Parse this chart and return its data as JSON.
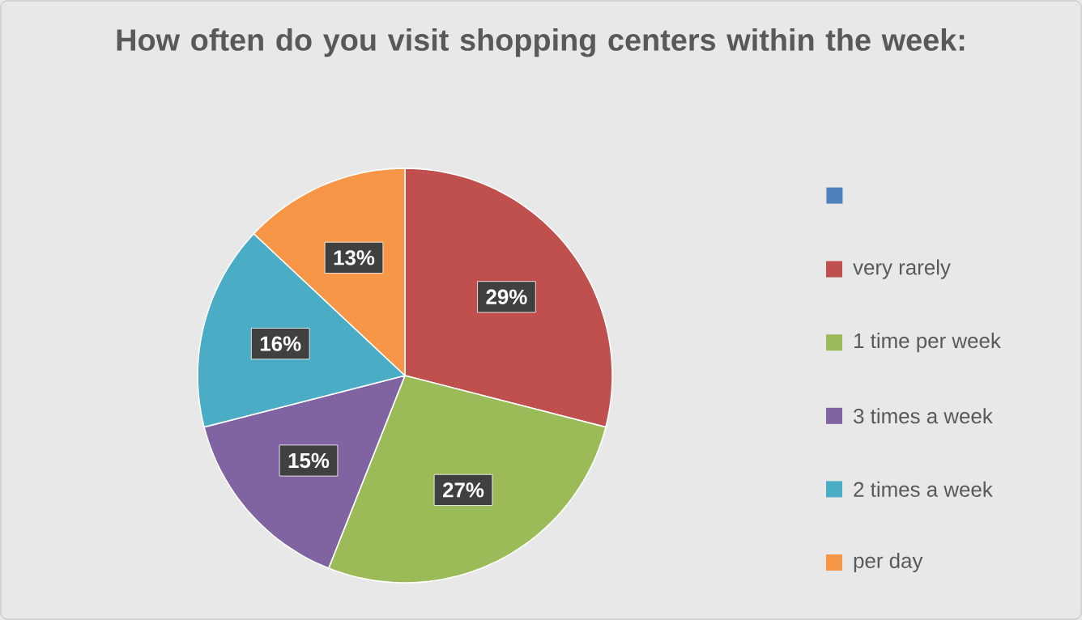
{
  "chart_data": {
    "type": "pie",
    "title": "How often do you visit shopping centers within the week:",
    "categories": [
      null,
      "very rarely",
      "1 time per week",
      "3 times a week",
      "2 times a week",
      "per day"
    ],
    "values": [
      0,
      29,
      27,
      15,
      16,
      13
    ],
    "colors": [
      "#4f81bd",
      "#c0504d",
      "#9bbb59",
      "#8064a2",
      "#4bacc6",
      "#f79646"
    ],
    "value_labels": [
      null,
      "29%",
      "27%",
      "15%",
      "16%",
      "13%"
    ],
    "legend": "right"
  }
}
